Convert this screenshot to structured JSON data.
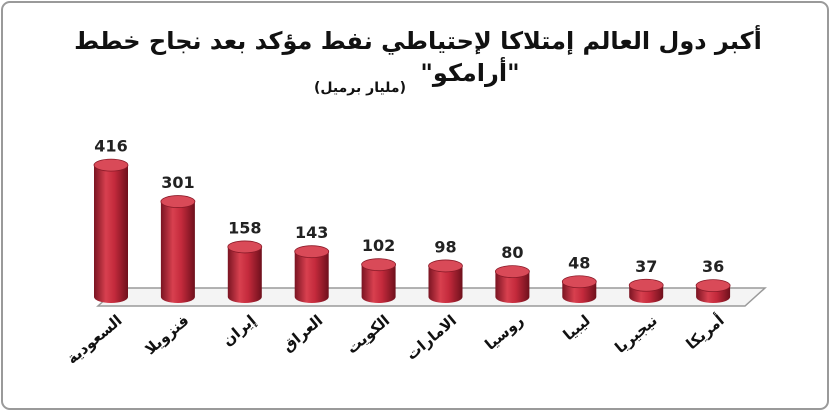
{
  "chart_data": {
    "type": "bar",
    "title": "أكبر دول العالم إمتلاكا لإحتياطي نفط مؤكد بعد نجاح خطط",
    "subtitle": "\"أرامكو\"",
    "unit": "(مليار برميل)",
    "categories": [
      "السعودية",
      "فنزويلا",
      "إيران",
      "العراق",
      "الكويت",
      "الامارات",
      "روسيا",
      "ليبيا",
      "نيجيريا",
      "أمريكا"
    ],
    "values": [
      416,
      301,
      158,
      143,
      102,
      98,
      80,
      48,
      37,
      36
    ],
    "color": "#c42a3c"
  }
}
